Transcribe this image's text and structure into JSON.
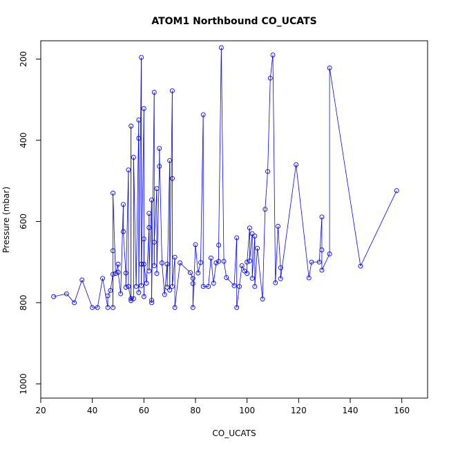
{
  "chart_data": {
    "type": "line",
    "title": "ATOM1 Northbound CO_UCATS",
    "xlabel": "CO_UCATS",
    "ylabel": "Pressure (mbar)",
    "xlim": [
      20,
      170
    ],
    "ylim": [
      1035,
      155
    ],
    "y_reversed": true,
    "grid": false,
    "legend": "none",
    "x_ticks": [
      20,
      40,
      60,
      80,
      100,
      120,
      140,
      160
    ],
    "y_ticks": [
      200,
      400,
      600,
      800,
      1000
    ],
    "markers": "open circles",
    "series": [
      {
        "color": "#0000ff",
        "points": [
          [
            25,
            785
          ],
          [
            30,
            778
          ],
          [
            33,
            800
          ],
          [
            36,
            744
          ],
          [
            40,
            812
          ],
          [
            42,
            812
          ],
          [
            44,
            740
          ],
          [
            46,
            812
          ],
          [
            46,
            783
          ],
          [
            47,
            770
          ],
          [
            48,
            730
          ],
          [
            48,
            812
          ],
          [
            48,
            672
          ],
          [
            48,
            530
          ],
          [
            49,
            728
          ],
          [
            50,
            705
          ],
          [
            50,
            725
          ],
          [
            51,
            778
          ],
          [
            52,
            558
          ],
          [
            52,
            625
          ],
          [
            53,
            727
          ],
          [
            53,
            762
          ],
          [
            54,
            473
          ],
          [
            54,
            760
          ],
          [
            55,
            795
          ],
          [
            55,
            365
          ],
          [
            55,
            790
          ],
          [
            56,
            790
          ],
          [
            56,
            442
          ],
          [
            57,
            760
          ],
          [
            58,
            350
          ],
          [
            58,
            395
          ],
          [
            58,
            775
          ],
          [
            59,
            196
          ],
          [
            59,
            705
          ],
          [
            59,
            758
          ],
          [
            60,
            322
          ],
          [
            60,
            785
          ],
          [
            60,
            643
          ],
          [
            60,
            705
          ],
          [
            61,
            752
          ],
          [
            62,
            615
          ],
          [
            62,
            580
          ],
          [
            62,
            722
          ],
          [
            63,
            547
          ],
          [
            63,
            800
          ],
          [
            63,
            794
          ],
          [
            64,
            282
          ],
          [
            64,
            709
          ],
          [
            64,
            651
          ],
          [
            65,
            519
          ],
          [
            65,
            728
          ],
          [
            66,
            464
          ],
          [
            66,
            420
          ],
          [
            67,
            702
          ],
          [
            68,
            780
          ],
          [
            69,
            705
          ],
          [
            69,
            762
          ],
          [
            70,
            450
          ],
          [
            70,
            769
          ],
          [
            71,
            278
          ],
          [
            71,
            494
          ],
          [
            71,
            760
          ],
          [
            72,
            688
          ],
          [
            72,
            812
          ],
          [
            74,
            702
          ],
          [
            78,
            726
          ],
          [
            79,
            740
          ],
          [
            79,
            753
          ],
          [
            79,
            812
          ],
          [
            80,
            657
          ],
          [
            81,
            727
          ],
          [
            82,
            701
          ],
          [
            83,
            337
          ],
          [
            83,
            760
          ],
          [
            85,
            760
          ],
          [
            86,
            690
          ],
          [
            87,
            752
          ],
          [
            88,
            702
          ],
          [
            89,
            698
          ],
          [
            89,
            658
          ],
          [
            90,
            172
          ],
          [
            91,
            698
          ],
          [
            92,
            738
          ],
          [
            95,
            758
          ],
          [
            96,
            640
          ],
          [
            96,
            812
          ],
          [
            97,
            760
          ],
          [
            98,
            709
          ],
          [
            99,
            722
          ],
          [
            100,
            728
          ],
          [
            100,
            700
          ],
          [
            101,
            616
          ],
          [
            101,
            697
          ],
          [
            102,
            630
          ],
          [
            102,
            740
          ],
          [
            103,
            636
          ],
          [
            103,
            760
          ],
          [
            104,
            666
          ],
          [
            106,
            791
          ],
          [
            107,
            570
          ],
          [
            108,
            477
          ],
          [
            109,
            247
          ],
          [
            110,
            190
          ],
          [
            111,
            751
          ],
          [
            112,
            612
          ],
          [
            113,
            714
          ],
          [
            113,
            741
          ],
          [
            119,
            460
          ],
          [
            124,
            739
          ],
          [
            125,
            700
          ],
          [
            128,
            700
          ],
          [
            129,
            589
          ],
          [
            129,
            670
          ],
          [
            129,
            720
          ],
          [
            132,
            680
          ],
          [
            132,
            222
          ],
          [
            144,
            710
          ],
          [
            158,
            524
          ]
        ]
      }
    ]
  }
}
